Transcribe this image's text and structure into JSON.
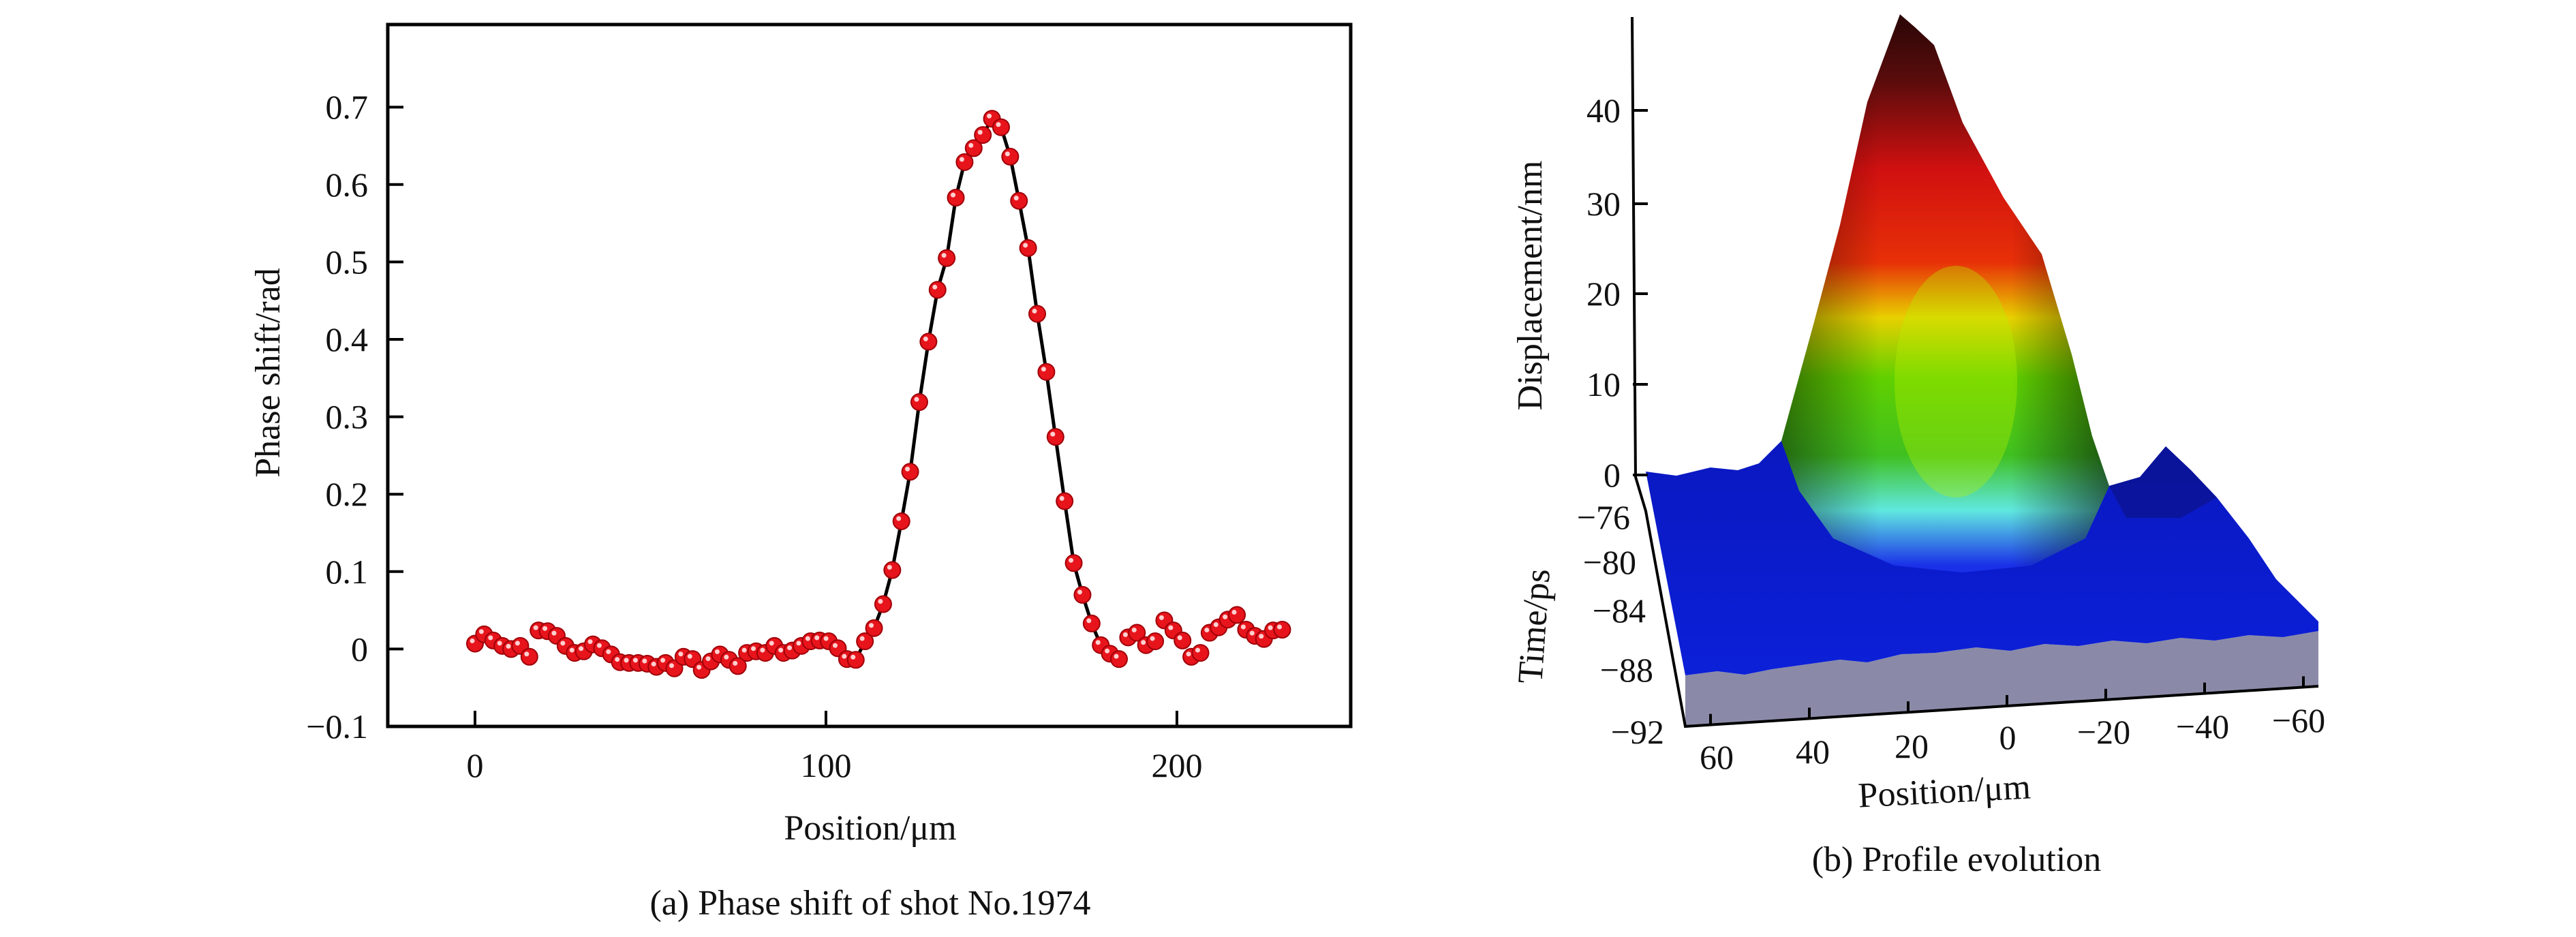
{
  "chart_data": [
    {
      "type": "scatter",
      "title": "(a) Phase shift of shot No.1974",
      "xlabel": "Position/μm",
      "ylabel": "Phase shift/rad",
      "xlim": [
        -25,
        260
      ],
      "ylim": [
        -0.1,
        0.75
      ],
      "xticks": [
        "0",
        "100",
        "200"
      ],
      "xtick_values": [
        0,
        100,
        200
      ],
      "yticks": [
        "−0.1",
        "0",
        "0.1",
        "0.2",
        "0.3",
        "0.4",
        "0.5",
        "0.6",
        "0.7"
      ],
      "ytick_values": [
        -0.1,
        0,
        0.1,
        0.2,
        0.3,
        0.4,
        0.5,
        0.6,
        0.7
      ],
      "grid": false,
      "marker_color": "#e8141c",
      "line_color": "#000000",
      "x": [
        0,
        2.6,
        5.2,
        7.8,
        10.3,
        12.9,
        15.5,
        18.1,
        20.7,
        23.3,
        25.8,
        28.4,
        31.0,
        33.6,
        36.2,
        38.8,
        41.3,
        43.9,
        46.5,
        49.1,
        51.7,
        54.3,
        56.8,
        59.4,
        62.0,
        64.6,
        67.2,
        69.8,
        72.4,
        74.9,
        77.5,
        80.1,
        82.7,
        85.3,
        87.9,
        90.4,
        93.0,
        95.6,
        98.2,
        100.8,
        103.4,
        106.0,
        108.5,
        111.1,
        113.7,
        116.3,
        118.9,
        121.5,
        124.0,
        126.6,
        129.2,
        131.8,
        134.4,
        137.0,
        139.5,
        142.1,
        144.7,
        147.3,
        149.9,
        152.5,
        155.0,
        157.6,
        160.2,
        162.8,
        165.4,
        168.0,
        170.6,
        173.1,
        175.7,
        178.3,
        180.9,
        183.5,
        186.1,
        188.6,
        191.2,
        193.8,
        196.4,
        199.0,
        201.6,
        204.1,
        206.7,
        209.3,
        211.9,
        214.5,
        217.1,
        219.7,
        222.2,
        224.8,
        227.4,
        230.0
      ],
      "y": [
        0.007,
        0.019,
        0.011,
        0.004,
        0,
        0.004,
        -0.01,
        0.024,
        0.023,
        0.017,
        0.004,
        -0.005,
        -0.003,
        0.006,
        0.001,
        -0.007,
        -0.017,
        -0.018,
        -0.018,
        -0.019,
        -0.023,
        -0.018,
        -0.025,
        -0.01,
        -0.013,
        -0.027,
        -0.016,
        -0.007,
        -0.014,
        -0.022,
        -0.005,
        -0.003,
        -0.005,
        0.004,
        -0.005,
        -0.002,
        0.004,
        0.01,
        0.011,
        0.01,
        0.001,
        -0.013,
        -0.014,
        0.01,
        0.027,
        0.058,
        0.102,
        0.165,
        0.229,
        0.319,
        0.397,
        0.464,
        0.505,
        0.583,
        0.629,
        0.647,
        0.664,
        0.685,
        0.674,
        0.636,
        0.579,
        0.518,
        0.433,
        0.358,
        0.274,
        0.191,
        0.111,
        0.07,
        0.033,
        0.005,
        -0.006,
        -0.013,
        0.015,
        0.021,
        0.005,
        0.01,
        0.037,
        0.024,
        0.011,
        -0.01,
        -0.005,
        0.021,
        0.028,
        0.038,
        0.044,
        0.025,
        0.017,
        0.013,
        0.024,
        0.025
      ],
      "fit_line_range": [
        108,
        180
      ]
    },
    {
      "type": "surface3d",
      "title": "(b) Profile evolution",
      "xlabel": "Position/μm",
      "ylabel": "Time/ps",
      "zlabel": "Displacement/nm",
      "xticks": [
        "60",
        "40",
        "20",
        "0",
        "−20",
        "−40",
        "−60"
      ],
      "yticks": [
        "−76",
        "−80",
        "−84",
        "−88",
        "−92"
      ],
      "zticks": [
        "40",
        "30",
        "20",
        "10",
        "0"
      ],
      "zlim": [
        0,
        50
      ],
      "colormap": [
        "#3a0808",
        "#d81010",
        "#f0a000",
        "#e8e800",
        "#50d000",
        "#60f0e0",
        "#1020e0",
        "#0a14b4"
      ],
      "peak_displacement_nm": 50
    }
  ]
}
